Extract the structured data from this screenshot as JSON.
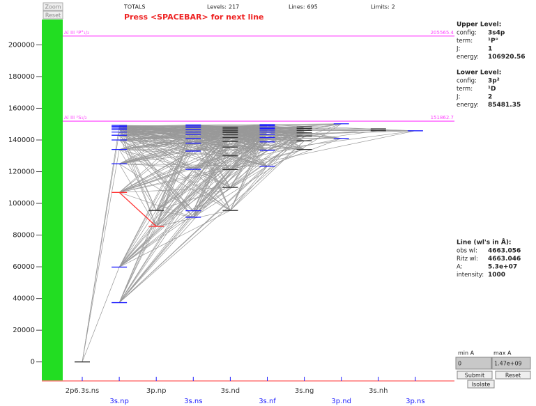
{
  "toolbar": {
    "zoom": "Zoom",
    "reset": "Reset"
  },
  "stats": {
    "title": "TOTALS",
    "items": [
      {
        "label": "Levels:",
        "value": 217
      },
      {
        "label": "Lines:",
        "value": 695
      },
      {
        "label": "Limits:",
        "value": 2
      }
    ]
  },
  "prompt": "Press <SPACEBAR> for next line",
  "axis": {
    "ylim": [
      -12000,
      216000
    ],
    "yticks": [
      0,
      20000,
      40000,
      60000,
      80000,
      100000,
      120000,
      140000,
      160000,
      180000,
      200000
    ]
  },
  "limits": [
    {
      "label": "Al III ²P°₁/₂",
      "energy": 205565.4
    },
    {
      "label": "Al III ²S₁/₂",
      "energy": 151862.7
    }
  ],
  "columns": [
    {
      "label": "2p6.3s.ns",
      "color": "#333333",
      "levels": [
        0
      ]
    },
    {
      "label": "3s.np",
      "color": "#1a1aff",
      "levels": [
        37400,
        59800,
        106920.56,
        125000,
        134000,
        140000,
        143000,
        145000,
        146500,
        147500,
        148500,
        149200
      ]
    },
    {
      "label": "3p.np",
      "color": "#333333",
      "levels": [
        85481.35,
        95550
      ]
    },
    {
      "label": "3s.ns",
      "color": "#1a1aff",
      "levels": [
        91275,
        95350,
        121500,
        133000,
        138000,
        141000,
        143500,
        145000,
        146500,
        147800,
        148800,
        149500
      ]
    },
    {
      "label": "3s.nd",
      "color": "#333333",
      "levels": [
        95550,
        110090,
        121370,
        130000,
        135500,
        139000,
        141500,
        143300,
        144700,
        145800,
        147000,
        148000
      ]
    },
    {
      "label": "3s.nf",
      "color": "#1a1aff",
      "levels": [
        123420,
        133500,
        138800,
        141500,
        143500,
        145000,
        146200,
        147200,
        148100,
        149000,
        149700
      ]
    },
    {
      "label": "3s.ng",
      "color": "#333333",
      "levels": [
        134000,
        139500,
        142500,
        144500,
        146000,
        147200,
        148200
      ]
    },
    {
      "label": "3p.nd",
      "color": "#1a1aff",
      "levels": [
        141000,
        150200
      ]
    },
    {
      "label": "3s.nh",
      "color": "#333333",
      "levels": [
        145900,
        147000
      ]
    },
    {
      "label": "3p.ns",
      "color": "#1a1aff",
      "levels": [
        145800
      ]
    }
  ],
  "upper_level": {
    "title": "Upper Level:",
    "fields": [
      {
        "label": "config:",
        "value": "3s4p"
      },
      {
        "label": "term:",
        "value": "¹P°"
      },
      {
        "label": "J:",
        "value": 1
      },
      {
        "label": "energy:",
        "value": 106920.56
      }
    ]
  },
  "lower_level": {
    "title": "Lower Level:",
    "fields": [
      {
        "label": "config:",
        "value": "3p²"
      },
      {
        "label": "term:",
        "value": "¹D"
      },
      {
        "label": "J:",
        "value": 2
      },
      {
        "label": "energy:",
        "value": 85481.35
      }
    ]
  },
  "line": {
    "title": "Line (wl's in Å):",
    "fields": [
      {
        "label": "obs wl:",
        "value": 4663.056
      },
      {
        "label": "Ritz wl:",
        "value": 4663.046
      },
      {
        "label": "A:",
        "value": "5.3e+07"
      },
      {
        "label": "intensity:",
        "value": 1000
      }
    ]
  },
  "filter": {
    "min_label": "min A",
    "max_label": "max A",
    "min_value": "0",
    "max_value": "1.47e+09",
    "submit": "Submit",
    "reset": "Reset",
    "isolate": "Isolate"
  }
}
